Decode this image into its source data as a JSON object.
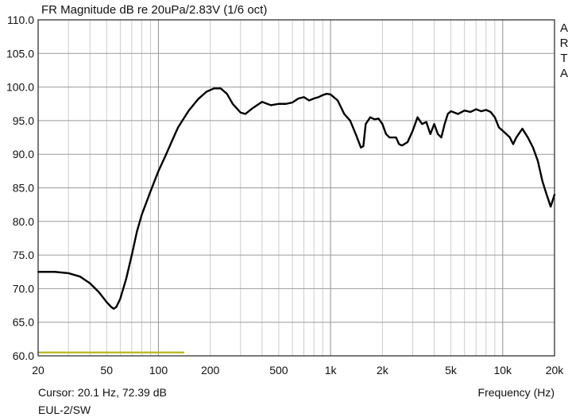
{
  "chart_data": {
    "type": "line",
    "title": "FR Magnitude dB re 20uPa/2.83V (1/6 oct)",
    "xlabel": "Frequency (Hz)",
    "ylabel": "",
    "x_scale": "log",
    "xlim": [
      20,
      20000
    ],
    "ylim": [
      60,
      110
    ],
    "grid": true,
    "x_tick_labels": [
      {
        "value": 20,
        "label": "20"
      },
      {
        "value": 50,
        "label": "50"
      },
      {
        "value": 100,
        "label": "100"
      },
      {
        "value": 200,
        "label": "200"
      },
      {
        "value": 500,
        "label": "500"
      },
      {
        "value": 1000,
        "label": "1k"
      },
      {
        "value": 2000,
        "label": "2k"
      },
      {
        "value": 5000,
        "label": "5k"
      },
      {
        "value": 10000,
        "label": "10k"
      },
      {
        "value": 20000,
        "label": "20k"
      }
    ],
    "y_tick_labels": [
      {
        "value": 60,
        "label": "60.0"
      },
      {
        "value": 65,
        "label": "65.0"
      },
      {
        "value": 70,
        "label": "70.0"
      },
      {
        "value": 75,
        "label": "75.0"
      },
      {
        "value": 80,
        "label": "80.0"
      },
      {
        "value": 85,
        "label": "85.0"
      },
      {
        "value": 90,
        "label": "90.0"
      },
      {
        "value": 95,
        "label": "95.0"
      },
      {
        "value": 100,
        "label": "100.0"
      },
      {
        "value": 105,
        "label": "105.0"
      },
      {
        "value": 110,
        "label": "110.0"
      }
    ],
    "series": [
      {
        "color": "#000000",
        "x": [
          20,
          25,
          30,
          35,
          40,
          45,
          50,
          53,
          55,
          57,
          60,
          65,
          70,
          75,
          80,
          90,
          100,
          110,
          120,
          130,
          150,
          170,
          190,
          210,
          230,
          250,
          270,
          300,
          320,
          350,
          400,
          450,
          500,
          550,
          600,
          650,
          700,
          750,
          800,
          850,
          900,
          950,
          1000,
          1100,
          1200,
          1300,
          1400,
          1500,
          1550,
          1600,
          1700,
          1800,
          1900,
          2000,
          2100,
          2200,
          2400,
          2500,
          2600,
          2800,
          3000,
          3200,
          3400,
          3600,
          3800,
          4000,
          4200,
          4400,
          4600,
          4800,
          5000,
          5500,
          6000,
          6500,
          7000,
          7500,
          8000,
          8500,
          9000,
          9500,
          10000,
          10500,
          11000,
          11500,
          12000,
          13000,
          14000,
          15000,
          16000,
          17000,
          18000,
          19000,
          20000
        ],
        "y": [
          72.5,
          72.5,
          72.3,
          71.8,
          70.8,
          69.5,
          68.0,
          67.3,
          67.0,
          67.3,
          68.5,
          71.5,
          75.0,
          78.5,
          81.0,
          84.5,
          87.5,
          89.8,
          92.0,
          94.0,
          96.5,
          98.2,
          99.3,
          99.8,
          99.8,
          99.0,
          97.5,
          96.2,
          96.0,
          96.8,
          97.8,
          97.3,
          97.5,
          97.5,
          97.7,
          98.3,
          98.5,
          98.0,
          98.3,
          98.5,
          98.8,
          99.0,
          98.9,
          98.0,
          96.0,
          95.0,
          93.0,
          91.0,
          91.2,
          94.5,
          95.5,
          95.2,
          95.3,
          94.5,
          93.0,
          92.5,
          92.5,
          91.5,
          91.3,
          91.8,
          93.5,
          95.5,
          94.5,
          94.8,
          93.0,
          94.5,
          93.0,
          92.5,
          94.5,
          96.0,
          96.4,
          96.0,
          96.5,
          96.3,
          96.7,
          96.4,
          96.6,
          96.3,
          95.5,
          94.0,
          93.5,
          93.0,
          92.5,
          91.5,
          92.5,
          93.8,
          92.5,
          91.0,
          89.0,
          86.0,
          84.0,
          82.2,
          84.0
        ]
      },
      {
        "color": "#b8b81e",
        "x": [
          20,
          140
        ],
        "y": [
          60.5,
          60.5
        ]
      }
    ]
  },
  "side_label": [
    "A",
    "R",
    "T",
    "A"
  ],
  "cursor_readout": "Cursor: 20.1 Hz, 72.39 dB",
  "device_label": "EUL-2/SW"
}
